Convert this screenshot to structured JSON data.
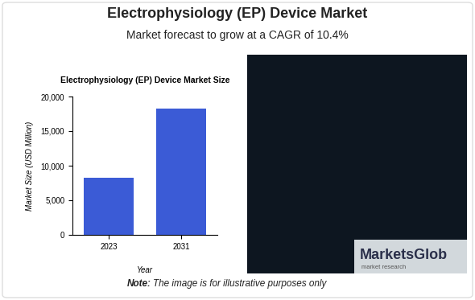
{
  "header": {
    "title": "Electrophysiology (EP) Device Market",
    "subtitle": "Market forecast to grow at a CAGR of 10.4%"
  },
  "chart_data": {
    "type": "bar",
    "title": "Electrophysiology (EP) Device Market Size",
    "x_label": "Year",
    "y_label": "Market Size (USD Million)",
    "categories": [
      "2023",
      "2031"
    ],
    "values": [
      8200,
      18200
    ],
    "color": "#3b5bd6",
    "ylim": [
      0,
      20000
    ],
    "yticks": [
      0,
      {
        "value": 5000,
        "label": "5,000"
      },
      {
        "value": 10000,
        "label": "10,000"
      },
      {
        "value": 15000,
        "label": "15,000"
      },
      {
        "value": 20000,
        "label": "20,000"
      }
    ],
    "grid": false
  },
  "logo": {
    "name": "MarketsGlob",
    "tagline": "market research"
  },
  "note": {
    "label": "Note:",
    "text": "The image is for illustrative purposes only"
  }
}
